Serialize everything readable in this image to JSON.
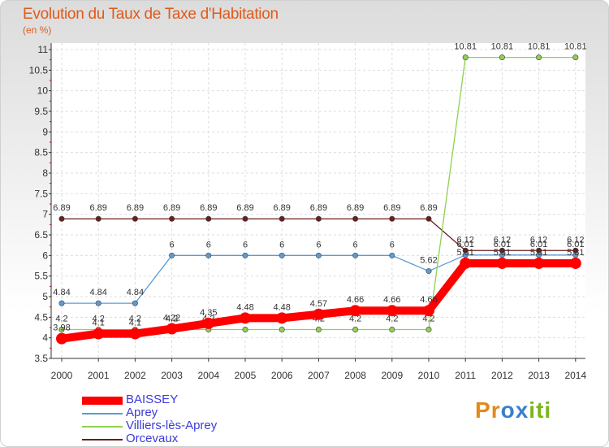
{
  "chart_data": {
    "type": "line",
    "title": "Evolution du Taux de Taxe d'Habitation",
    "subtitle": "(en %)",
    "xlabel": "",
    "ylabel": "",
    "x": [
      2000,
      2001,
      2002,
      2003,
      2004,
      2005,
      2006,
      2007,
      2008,
      2009,
      2010,
      2011,
      2012,
      2013,
      2014
    ],
    "x_tick_labels": [
      "2000",
      "2001",
      "2002",
      "2003",
      "2004",
      "2005",
      "2006",
      "2007",
      "2008",
      "2009",
      "2010",
      "2011",
      "2012",
      "2013",
      "2014"
    ],
    "ylim": [
      3.5,
      11
    ],
    "y_ticks": [
      3.5,
      4,
      4.5,
      5,
      5.5,
      6,
      6.5,
      7,
      7.5,
      8,
      8.5,
      9,
      9.5,
      10,
      10.5,
      11
    ],
    "y_tick_labels": [
      "3.5",
      "4",
      "4.5",
      "5",
      "5.5",
      "6",
      "6.5",
      "7",
      "7.5",
      "8",
      "8.5",
      "9",
      "9.5",
      "10",
      "10.5",
      "11"
    ],
    "grid": true,
    "legend_position": "bottom-left",
    "series": [
      {
        "name": "Orcevaux",
        "color": "#6b1d1d",
        "thick": false,
        "values": [
          6.89,
          6.89,
          6.89,
          6.89,
          6.89,
          6.89,
          6.89,
          6.89,
          6.89,
          6.89,
          6.89,
          6.12,
          6.12,
          6.12,
          6.12
        ],
        "labels": [
          "6.89",
          "6.89",
          "6.89",
          "6.89",
          "6.89",
          "6.89",
          "6.89",
          "6.89",
          "6.89",
          "6.89",
          "6.89",
          "6.12",
          "6.12",
          "6.12",
          "6.12"
        ]
      },
      {
        "name": "Aprey",
        "color": "#5b9bd5",
        "thick": false,
        "values": [
          4.84,
          4.84,
          4.84,
          6,
          6,
          6,
          6,
          6,
          6,
          6,
          5.62,
          6.01,
          6.01,
          6.01,
          6.01
        ],
        "labels": [
          "4.84",
          "4.84",
          "4.84",
          "6",
          "6",
          "6",
          "6",
          "6",
          "6",
          "6",
          "5.62",
          "6.01",
          "6.01",
          "6.01",
          "6.01"
        ]
      },
      {
        "name": "Villiers-lès-Aprey",
        "color": "#8fd14f",
        "thick": false,
        "values": [
          4.2,
          4.2,
          4.2,
          4.2,
          4.2,
          4.2,
          4.2,
          4.2,
          4.2,
          4.2,
          4.2,
          10.81,
          10.81,
          10.81,
          10.81
        ],
        "labels": [
          "4.2",
          "4.2",
          "4.2",
          "4.2",
          "4.2",
          "4.2",
          "4.2",
          "4.2",
          "4.2",
          "4.2",
          "4.2",
          "10.81",
          "10.81",
          "10.81",
          "10.81"
        ]
      },
      {
        "name": "BAISSEY",
        "color": "#ff0000",
        "thick": true,
        "values": [
          3.98,
          4.1,
          4.1,
          4.22,
          4.35,
          4.48,
          4.48,
          4.57,
          4.66,
          4.66,
          4.66,
          5.81,
          5.81,
          5.81,
          5.81
        ],
        "labels": [
          "3.98",
          "4.1",
          "4.1",
          "4.22",
          "4.35",
          "4.48",
          "4.48",
          "4.57",
          "4.66",
          "4.66",
          "4.66",
          "5.81",
          "5.81",
          "5.81",
          "5.81"
        ]
      }
    ],
    "legend_order": [
      "BAISSEY",
      "Aprey",
      "Villiers-lès-Aprey",
      "Orcevaux"
    ]
  },
  "logo_text": [
    "P",
    "r",
    "o",
    "x",
    "i",
    "t",
    "i"
  ]
}
